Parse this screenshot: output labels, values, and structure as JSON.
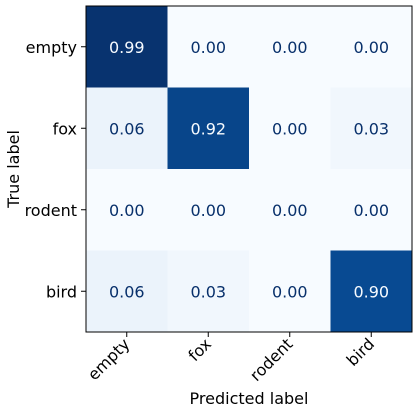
{
  "chart_data": {
    "type": "heatmap",
    "title": "",
    "xlabel": "Predicted label",
    "ylabel": "True label",
    "x_categories": [
      "empty",
      "fox",
      "rodent",
      "bird"
    ],
    "y_categories": [
      "empty",
      "fox",
      "rodent",
      "bird"
    ],
    "values": [
      [
        0.99,
        0.0,
        0.0,
        0.0
      ],
      [
        0.06,
        0.92,
        0.0,
        0.03
      ],
      [
        0.0,
        0.0,
        0.0,
        0.0
      ],
      [
        0.06,
        0.03,
        0.0,
        0.9
      ]
    ],
    "value_labels": [
      [
        "0.99",
        "0.00",
        "0.00",
        "0.00"
      ],
      [
        "0.06",
        "0.92",
        "0.00",
        "0.03"
      ],
      [
        "0.00",
        "0.00",
        "0.00",
        "0.00"
      ],
      [
        "0.06",
        "0.03",
        "0.00",
        "0.90"
      ]
    ],
    "vmin": 0,
    "vmax": 1,
    "colormap": "Blues",
    "grid": false,
    "legend": "none"
  }
}
